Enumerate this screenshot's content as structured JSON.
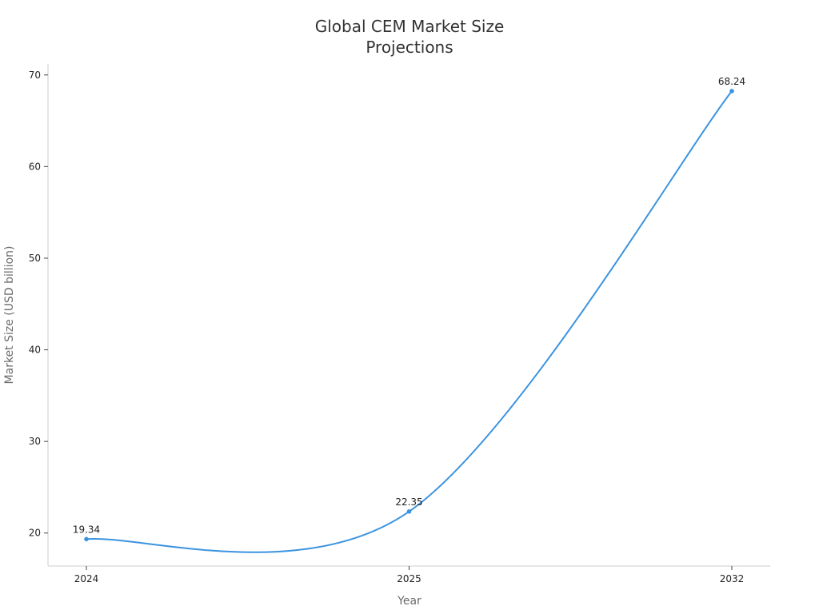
{
  "chart_data": {
    "type": "line",
    "title_lines": [
      "Global CEM Market Size",
      "Projections"
    ],
    "xlabel": "Year",
    "ylabel": "Market Size (USD billion)",
    "categories": [
      "2024",
      "2025",
      "2032"
    ],
    "series": [
      {
        "values": [
          19.34,
          22.35,
          68.24
        ],
        "labels": [
          "19.34",
          "22.35",
          "68.24"
        ]
      }
    ],
    "yticks": [
      20,
      30,
      40,
      50,
      60,
      70
    ],
    "ytick_labels": [
      "20",
      "30",
      "40",
      "50",
      "60",
      "70"
    ],
    "ylim": [
      16.4,
      71.2
    ],
    "grid": false,
    "smooth": true,
    "line_color": "#3a93e0"
  }
}
